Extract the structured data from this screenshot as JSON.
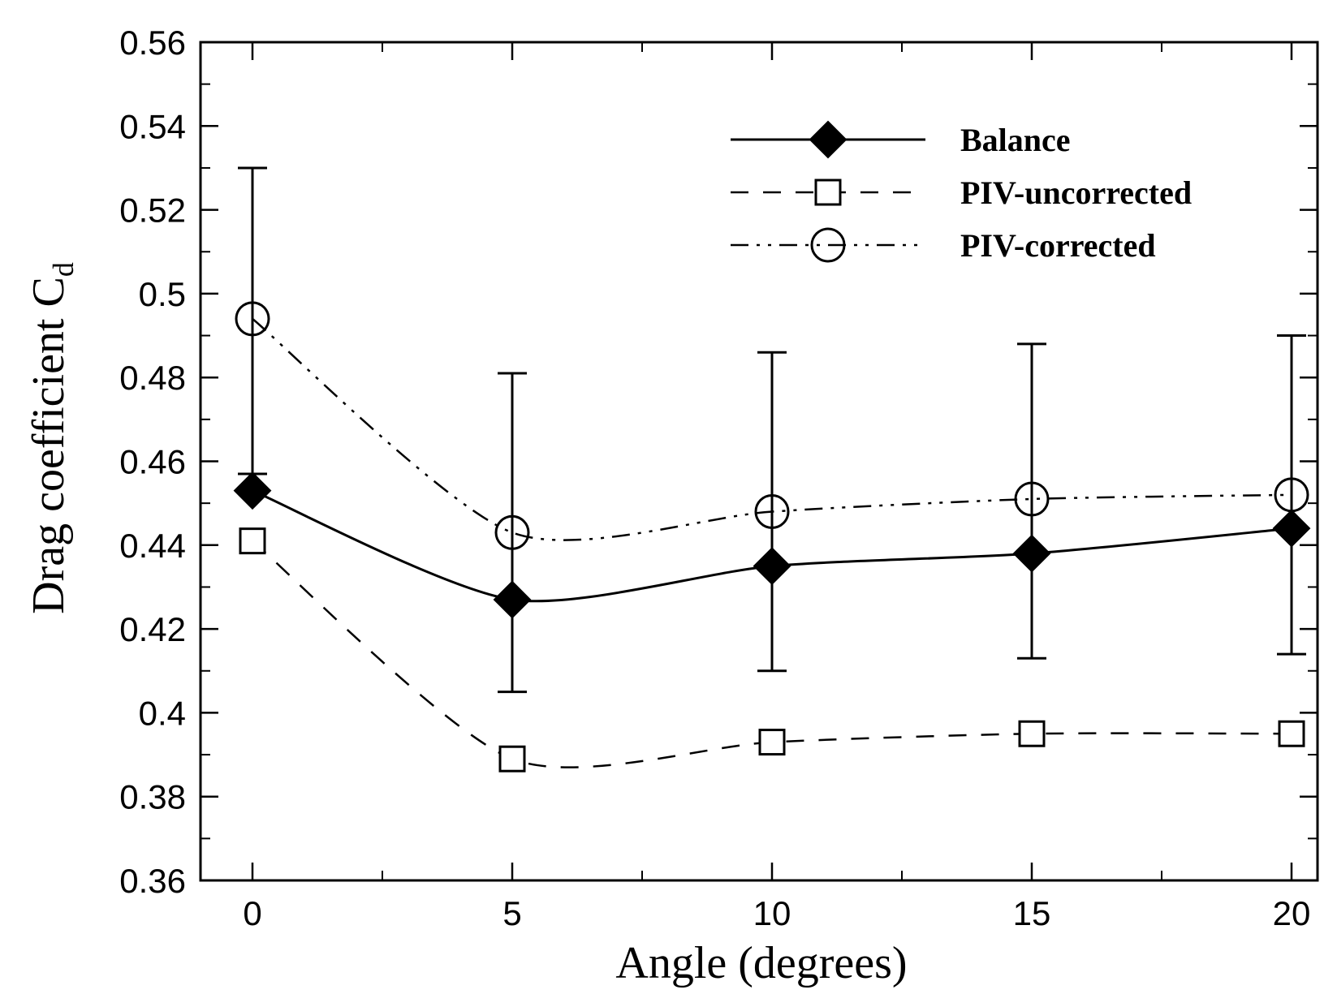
{
  "chart_data": {
    "type": "line",
    "xlabel": "Angle (degrees)",
    "ylabel_main": "Drag coefficient C",
    "ylabel_sub": "d",
    "xlim": [
      -1,
      20.5
    ],
    "ylim": [
      0.36,
      0.56
    ],
    "xticks": [
      0,
      5,
      10,
      15,
      20
    ],
    "xtick_labels": [
      "0",
      "5",
      "10",
      "15",
      "20"
    ],
    "yticks": [
      0.36,
      0.38,
      0.4,
      0.42,
      0.44,
      0.46,
      0.48,
      0.5,
      0.52,
      0.54,
      0.56
    ],
    "ytick_labels": [
      "0.36",
      "0.38",
      "0.4",
      "0.42",
      "0.44",
      "0.46",
      "0.48",
      "0.5",
      "0.52",
      "0.54",
      "0.56"
    ],
    "x": [
      0,
      5,
      10,
      15,
      20
    ],
    "series": [
      {
        "name": "Balance",
        "marker": "diamond",
        "line": "solid",
        "values": [
          0.453,
          0.427,
          0.435,
          0.438,
          0.444
        ],
        "error_low": [
          0.457,
          0.405,
          0.41,
          0.413,
          0.414
        ],
        "error_high": [
          0.53,
          0.481,
          0.486,
          0.488,
          0.49
        ]
      },
      {
        "name": "PIV-uncorrected",
        "marker": "square",
        "line": "dashed",
        "values": [
          0.441,
          0.389,
          0.393,
          0.395,
          0.395
        ]
      },
      {
        "name": "PIV-corrected",
        "marker": "circle",
        "line": "dashdotdot",
        "values": [
          0.494,
          0.443,
          0.448,
          0.451,
          0.452
        ]
      }
    ],
    "legend_position": "top-right",
    "grid": false
  }
}
